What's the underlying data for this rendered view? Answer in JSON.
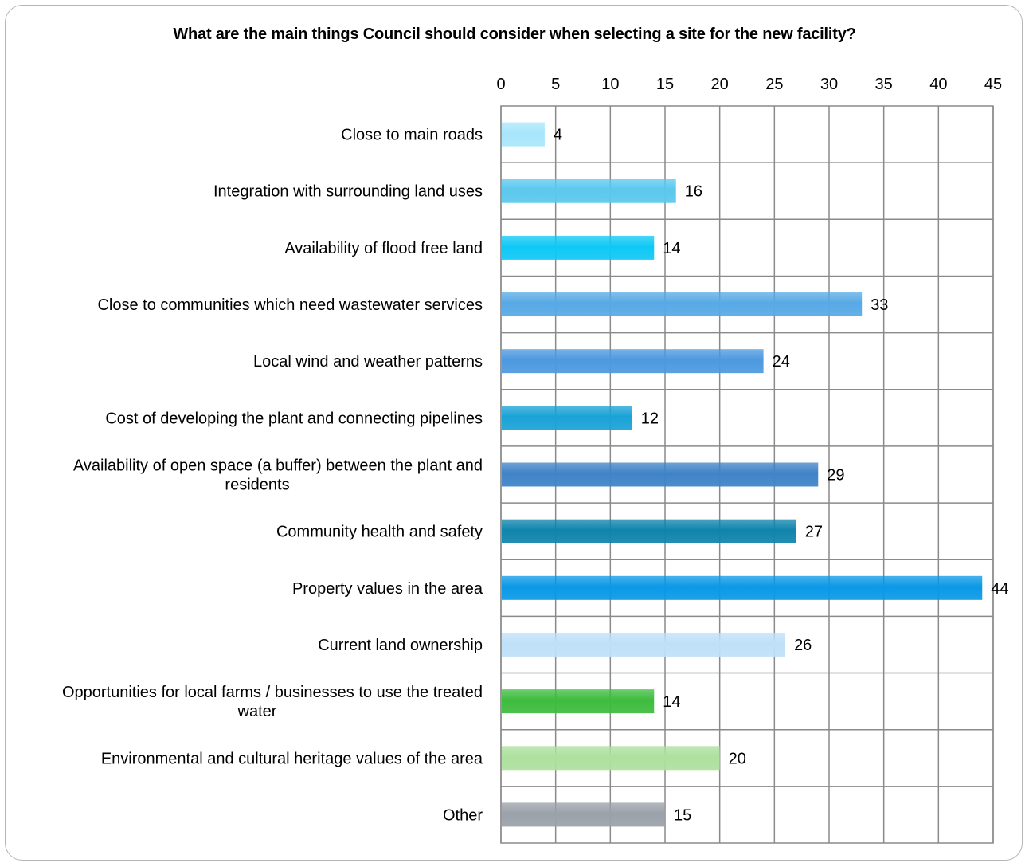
{
  "chart_data": {
    "type": "bar",
    "orientation": "horizontal",
    "title": "What are the main things Council should consider when selecting a site for the new facility?",
    "xlim": [
      0,
      45
    ],
    "x_ticks": [
      "0",
      "5",
      "10",
      "15",
      "20",
      "25",
      "30",
      "35",
      "40",
      "45"
    ],
    "x_tick_values": [
      0,
      5,
      10,
      15,
      20,
      25,
      30,
      35,
      40,
      45
    ],
    "x_axis_position": "top",
    "grid": true,
    "legend": "none",
    "categories": [
      [
        "Close to main roads"
      ],
      [
        "Integration with surrounding land uses"
      ],
      [
        "Availability of flood free land"
      ],
      [
        "Close to communities which need wastewater services"
      ],
      [
        "Local wind and weather patterns"
      ],
      [
        "Cost of developing the plant and connecting pipelines"
      ],
      [
        "Availability of open space (a buffer) between the plant and",
        "residents"
      ],
      [
        "Community health and safety"
      ],
      [
        "Property values in the area"
      ],
      [
        "Current land ownership"
      ],
      [
        "Opportunities for local farms / businesses to use the treated",
        "water"
      ],
      [
        "Environmental and cultural heritage values of the area"
      ],
      [
        "Other"
      ]
    ],
    "values": [
      4,
      16,
      14,
      33,
      24,
      12,
      29,
      27,
      44,
      26,
      14,
      20,
      15
    ],
    "data_labels": [
      "4",
      "16",
      "14",
      "33",
      "24",
      "12",
      "29",
      "27",
      "44",
      "26",
      "14",
      "20",
      "15"
    ],
    "colors": [
      "#a8e6fb",
      "#5bc8ee",
      "#0fc8f6",
      "#57a9e6",
      "#4c99df",
      "#1aa2d6",
      "#3f83c7",
      "#0f84ad",
      "#0a98e6",
      "#bfe0f9",
      "#3ebc3e",
      "#aee09e",
      "#9aa1a8"
    ]
  }
}
